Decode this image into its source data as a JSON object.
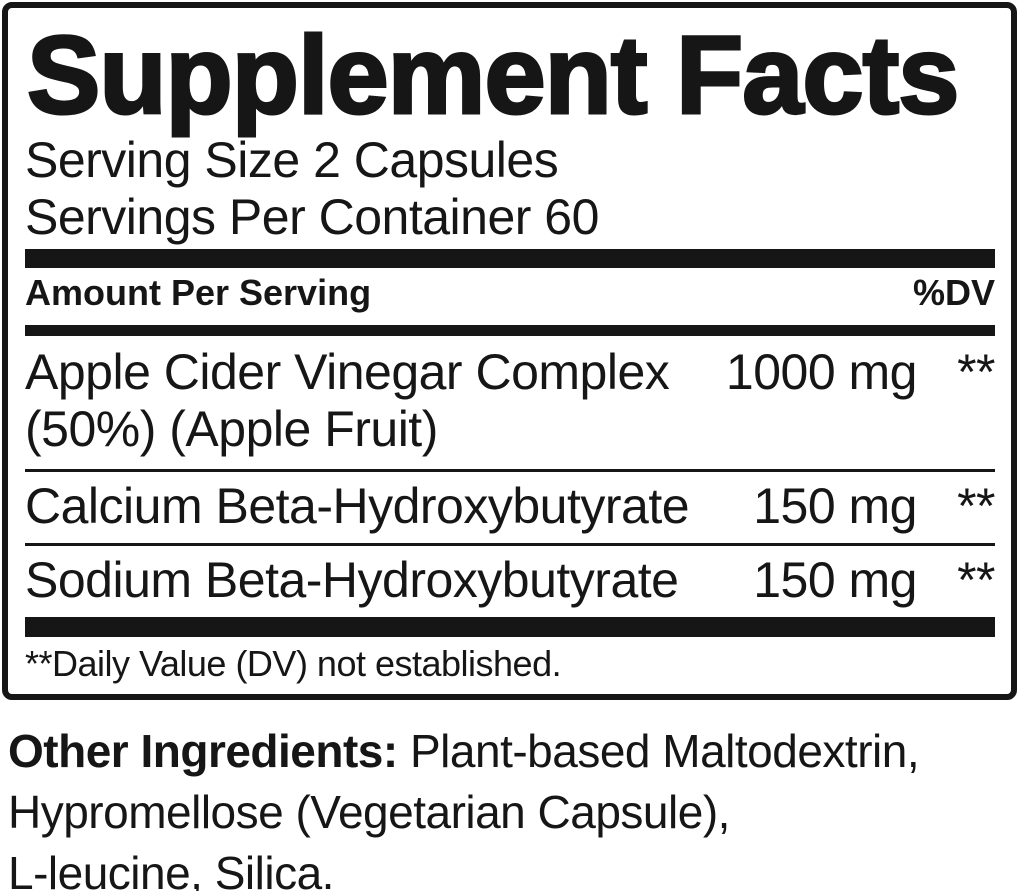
{
  "panel": {
    "title": "Supplement Facts",
    "serving_size": "Serving Size 2 Capsules",
    "servings_per_container": "Servings Per Container 60",
    "columns": {
      "amount_header": "Amount Per Serving",
      "dv_header": "%DV"
    },
    "rows": [
      {
        "name_lines": [
          "Apple Cider Vinegar Complex",
          "(50%) (Apple Fruit)"
        ],
        "amount": "1000 mg",
        "dv": "**"
      },
      {
        "name_lines": [
          "Calcium Beta-Hydroxybutyrate"
        ],
        "amount": "150 mg",
        "dv": "**"
      },
      {
        "name_lines": [
          "Sodium Beta-Hydroxybutyrate"
        ],
        "amount": "150 mg",
        "dv": "**"
      }
    ],
    "footnote": "**Daily Value (DV) not established."
  },
  "other_ingredients": {
    "label": "Other Ingredients:",
    "lines": [
      "Plant-based Maltodextrin,",
      "Hypromellose (Vegetarian Capsule),",
      "L-leucine, Silica."
    ]
  },
  "colors": {
    "text": "#161616",
    "bars": "#161616",
    "background": "#ffffff"
  }
}
